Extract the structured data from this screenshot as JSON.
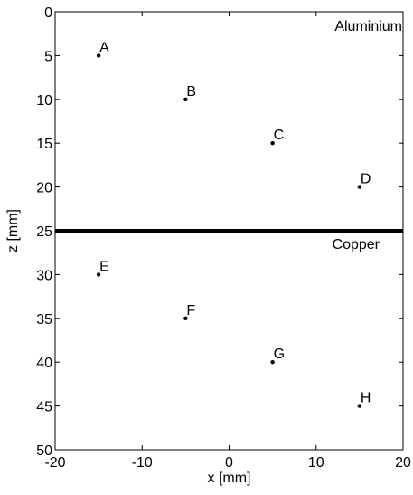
{
  "chart_data": {
    "type": "scatter",
    "title": "",
    "xlabel": "x [mm]",
    "ylabel": "z [mm]",
    "xlim": [
      -20,
      20
    ],
    "ylim": [
      0,
      50
    ],
    "y_axis_reversed": true,
    "grid": false,
    "xticks": [
      "-20",
      "-10",
      "0",
      "10",
      "20"
    ],
    "yticks": [
      "0",
      "5",
      "10",
      "15",
      "20",
      "25",
      "30",
      "35",
      "40",
      "45",
      "50"
    ],
    "points": [
      {
        "label": "A",
        "x": -15,
        "z": 5
      },
      {
        "label": "B",
        "x": -5,
        "z": 10
      },
      {
        "label": "C",
        "x": 5,
        "z": 15
      },
      {
        "label": "D",
        "x": 15,
        "z": 20
      },
      {
        "label": "E",
        "x": -15,
        "z": 30
      },
      {
        "label": "F",
        "x": -5,
        "z": 35
      },
      {
        "label": "G",
        "x": 5,
        "z": 40
      },
      {
        "label": "H",
        "x": 15,
        "z": 45
      }
    ],
    "boundary": {
      "z": 25,
      "color": "#000000"
    },
    "regions": [
      {
        "label": "Aluminium",
        "side": "above"
      },
      {
        "label": "Copper",
        "side": "below"
      }
    ]
  }
}
